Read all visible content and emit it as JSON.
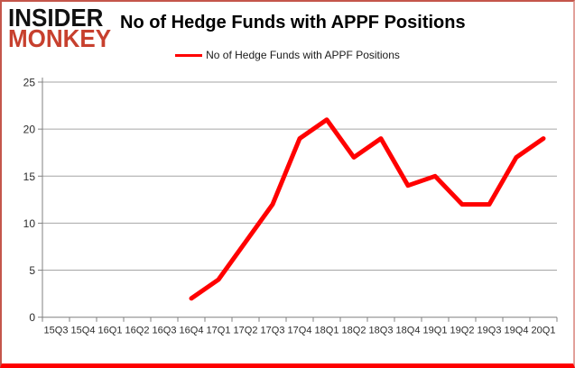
{
  "header": {
    "logo_line1": "INSIDER",
    "logo_line2": "MONKEY",
    "title": "No of Hedge Funds with APPF Positions"
  },
  "legend": {
    "label": "No of Hedge Funds with APPF Positions"
  },
  "chart_data": {
    "type": "line",
    "title": "No of Hedge Funds with APPF Positions",
    "categories": [
      "15Q3",
      "15Q4",
      "16Q1",
      "16Q2",
      "16Q3",
      "16Q4",
      "17Q1",
      "17Q2",
      "17Q3",
      "17Q4",
      "18Q1",
      "18Q2",
      "18Q3",
      "18Q4",
      "19Q1",
      "19Q2",
      "19Q3",
      "19Q4",
      "20Q1"
    ],
    "series": [
      {
        "name": "No of Hedge Funds with APPF Positions",
        "color": "#ff0000",
        "values": [
          null,
          null,
          null,
          null,
          null,
          2,
          4,
          8,
          12,
          19,
          21,
          17,
          19,
          14,
          15,
          12,
          12,
          17,
          19
        ]
      }
    ],
    "ylabel": "",
    "xlabel": "",
    "ylim": [
      0,
      25
    ],
    "yticks": [
      0,
      5,
      10,
      15,
      20,
      25
    ],
    "grid": true,
    "legend_position": "top-center"
  },
  "colors": {
    "line": "#ff0000",
    "grid": "#a6a6a6",
    "axis": "#808080",
    "tick_label": "#2b2b2b",
    "logo_primary": "#111111",
    "logo_accent": "#c7402e",
    "frame_bottom": "#fe0000",
    "frame_side": "#c4564b"
  }
}
